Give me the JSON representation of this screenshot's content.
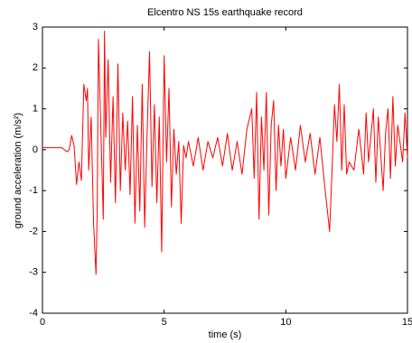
{
  "chart_data": {
    "type": "line",
    "title": "Elcentro NS 15s earthquake record",
    "x_label": "time (s)",
    "y_label": "ground acceleration (m/s²)",
    "x": [
      0,
      0.5,
      0.8,
      1.0,
      1.1,
      1.2,
      1.3,
      1.4,
      1.5,
      1.6,
      1.7,
      1.8,
      1.85,
      1.9,
      2.0,
      2.1,
      2.2,
      2.25,
      2.3,
      2.4,
      2.5,
      2.55,
      2.6,
      2.7,
      2.8,
      2.9,
      3.0,
      3.1,
      3.2,
      3.3,
      3.4,
      3.5,
      3.6,
      3.7,
      3.8,
      3.9,
      4.0,
      4.1,
      4.2,
      4.3,
      4.4,
      4.5,
      4.6,
      4.7,
      4.8,
      4.9,
      5.0,
      5.1,
      5.2,
      5.3,
      5.4,
      5.5,
      5.6,
      5.7,
      5.8,
      5.9,
      6.0,
      6.2,
      6.4,
      6.6,
      6.8,
      7.0,
      7.2,
      7.4,
      7.6,
      7.8,
      8.0,
      8.2,
      8.4,
      8.6,
      8.7,
      8.8,
      8.9,
      9.0,
      9.1,
      9.2,
      9.3,
      9.4,
      9.5,
      9.6,
      9.7,
      9.8,
      9.9,
      10.0,
      10.2,
      10.4,
      10.6,
      10.8,
      11.0,
      11.2,
      11.4,
      11.6,
      11.8,
      11.9,
      12.0,
      12.1,
      12.2,
      12.3,
      12.4,
      12.5,
      12.6,
      12.8,
      13.0,
      13.2,
      13.3,
      13.4,
      13.6,
      13.7,
      13.8,
      14.0,
      14.1,
      14.2,
      14.3,
      14.4,
      14.5,
      14.6,
      14.8,
      14.9,
      15.0
    ],
    "series": [
      {
        "name": "acceleration",
        "color": "#ff0000",
        "values": [
          0.05,
          0.05,
          0.05,
          -0.05,
          0.0,
          0.35,
          0.1,
          -0.85,
          -0.3,
          -0.75,
          1.6,
          1.2,
          1.5,
          -0.5,
          0.8,
          -1.8,
          -3.05,
          -1.5,
          2.7,
          0.5,
          -1.7,
          2.9,
          0.3,
          2.2,
          -0.8,
          1.3,
          -1.3,
          2.1,
          -1.0,
          0.9,
          -0.5,
          0.7,
          -1.1,
          1.3,
          -1.8,
          0.6,
          -1.5,
          1.6,
          -1.9,
          0.4,
          2.4,
          -0.9,
          1.1,
          -1.3,
          0.8,
          -2.5,
          2.3,
          -0.3,
          1.5,
          -1.4,
          0.5,
          -0.6,
          0.2,
          -1.8,
          0.1,
          -0.2,
          0.2,
          -0.4,
          0.3,
          -0.5,
          0.2,
          -0.2,
          0.3,
          -0.4,
          0.4,
          -0.5,
          0.2,
          -0.6,
          0.5,
          1.0,
          -0.7,
          1.4,
          -1.7,
          0.8,
          -0.5,
          1.4,
          -1.6,
          0.6,
          1.2,
          -1.0,
          0.6,
          -0.4,
          0.5,
          -0.7,
          0.3,
          -0.5,
          0.6,
          -0.3,
          0.4,
          -0.6,
          0.3,
          -0.9,
          -2.0,
          -0.5,
          1.1,
          0.2,
          1.6,
          -0.5,
          1.1,
          -0.6,
          -0.3,
          -0.5,
          0.5,
          -0.6,
          0.9,
          -0.3,
          1.0,
          -0.8,
          0.8,
          -1.0,
          0.4,
          1.0,
          -0.7,
          1.3,
          -0.4,
          0.6,
          -0.3,
          0.9,
          -0.2
        ]
      }
    ],
    "xlim": [
      0,
      15
    ],
    "xticks": [
      0,
      5,
      10,
      15
    ],
    "ylim": [
      -4,
      3
    ],
    "yticks": [
      -4,
      -3,
      -2,
      -1,
      0,
      1,
      2,
      3
    ],
    "grid": false
  }
}
